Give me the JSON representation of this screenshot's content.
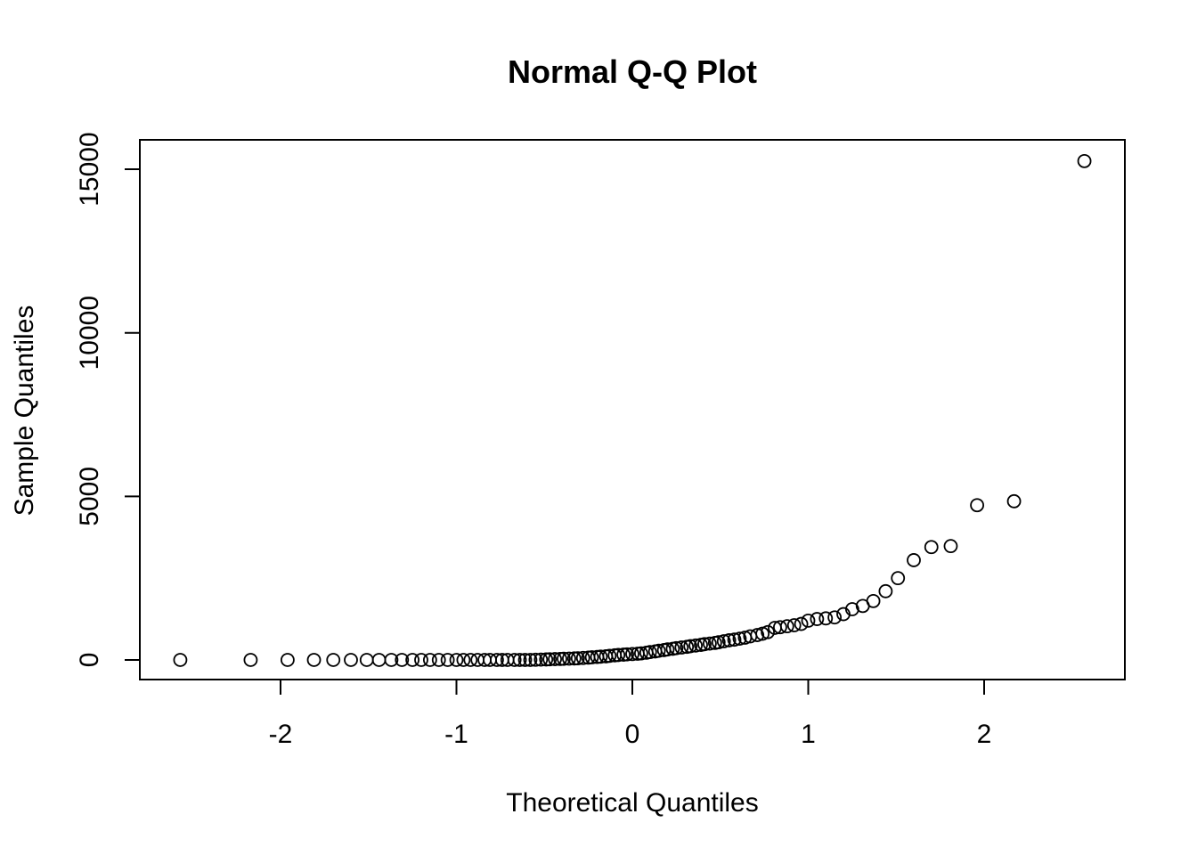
{
  "chart_data": {
    "type": "scatter",
    "title": "Normal Q-Q Plot",
    "xlabel": "Theoretical Quantiles",
    "ylabel": "Sample Quantiles",
    "xlim": [
      -2.8,
      2.8
    ],
    "ylim": [
      -600,
      15900
    ],
    "x_ticks": [
      -2,
      -1,
      0,
      1,
      2
    ],
    "x_tick_labels": [
      "-2",
      "-1",
      "0",
      "1",
      "2"
    ],
    "y_ticks": [
      0,
      5000,
      10000,
      15000
    ],
    "y_tick_labels": [
      "0",
      "5000",
      "10000",
      "15000"
    ],
    "grid": false,
    "marker": "open-circle",
    "colors": {
      "points": "#000000",
      "axes": "#000000",
      "background": "#ffffff"
    },
    "points": [
      [
        -2.57,
        0
      ],
      [
        -2.17,
        0
      ],
      [
        -1.96,
        0
      ],
      [
        -1.81,
        0
      ],
      [
        -1.7,
        0
      ],
      [
        -1.6,
        0
      ],
      [
        -1.51,
        0
      ],
      [
        -1.44,
        0
      ],
      [
        -1.37,
        0
      ],
      [
        -1.31,
        0
      ],
      [
        -1.25,
        0
      ],
      [
        -1.2,
        0
      ],
      [
        -1.15,
        0
      ],
      [
        -1.1,
        0
      ],
      [
        -1.05,
        0
      ],
      [
        -1.0,
        0
      ],
      [
        -0.96,
        0
      ],
      [
        -0.92,
        0
      ],
      [
        -0.88,
        0
      ],
      [
        -0.84,
        0
      ],
      [
        -0.81,
        0
      ],
      [
        -0.77,
        0
      ],
      [
        -0.74,
        0
      ],
      [
        -0.71,
        0
      ],
      [
        -0.67,
        0
      ],
      [
        -0.64,
        0
      ],
      [
        -0.61,
        0
      ],
      [
        -0.58,
        0
      ],
      [
        -0.55,
        5
      ],
      [
        -0.52,
        10
      ],
      [
        -0.49,
        15
      ],
      [
        -0.47,
        20
      ],
      [
        -0.44,
        25
      ],
      [
        -0.41,
        30
      ],
      [
        -0.39,
        35
      ],
      [
        -0.36,
        40
      ],
      [
        -0.33,
        45
      ],
      [
        -0.31,
        50
      ],
      [
        -0.28,
        60
      ],
      [
        -0.25,
        70
      ],
      [
        -0.23,
        80
      ],
      [
        -0.2,
        90
      ],
      [
        -0.18,
        100
      ],
      [
        -0.15,
        110
      ],
      [
        -0.13,
        125
      ],
      [
        -0.1,
        140
      ],
      [
        -0.08,
        150
      ],
      [
        -0.05,
        160
      ],
      [
        -0.03,
        170
      ],
      [
        0.0,
        180
      ],
      [
        0.03,
        190
      ],
      [
        0.05,
        200
      ],
      [
        0.08,
        220
      ],
      [
        0.1,
        240
      ],
      [
        0.13,
        260
      ],
      [
        0.15,
        280
      ],
      [
        0.18,
        300
      ],
      [
        0.2,
        320
      ],
      [
        0.23,
        340
      ],
      [
        0.25,
        360
      ],
      [
        0.28,
        380
      ],
      [
        0.31,
        400
      ],
      [
        0.33,
        420
      ],
      [
        0.36,
        440
      ],
      [
        0.39,
        460
      ],
      [
        0.41,
        480
      ],
      [
        0.44,
        500
      ],
      [
        0.47,
        520
      ],
      [
        0.49,
        540
      ],
      [
        0.52,
        570
      ],
      [
        0.55,
        600
      ],
      [
        0.58,
        620
      ],
      [
        0.61,
        650
      ],
      [
        0.64,
        680
      ],
      [
        0.67,
        720
      ],
      [
        0.71,
        760
      ],
      [
        0.74,
        800
      ],
      [
        0.77,
        850
      ],
      [
        0.81,
        980
      ],
      [
        0.84,
        1000
      ],
      [
        0.88,
        1030
      ],
      [
        0.92,
        1060
      ],
      [
        0.96,
        1100
      ],
      [
        1.0,
        1200
      ],
      [
        1.05,
        1250
      ],
      [
        1.1,
        1270
      ],
      [
        1.15,
        1300
      ],
      [
        1.2,
        1400
      ],
      [
        1.25,
        1550
      ],
      [
        1.31,
        1650
      ],
      [
        1.37,
        1800
      ],
      [
        1.44,
        2100
      ],
      [
        1.51,
        2500
      ],
      [
        1.6,
        3050
      ],
      [
        1.7,
        3450
      ],
      [
        1.81,
        3480
      ],
      [
        1.96,
        4730
      ],
      [
        2.17,
        4850
      ],
      [
        2.57,
        15250
      ]
    ]
  }
}
